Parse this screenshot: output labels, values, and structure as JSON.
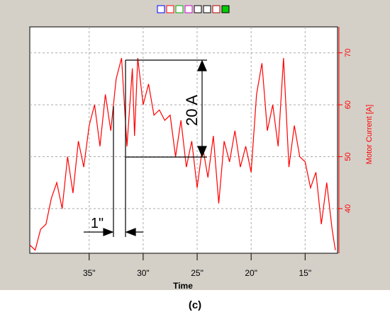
{
  "chart_data": {
    "type": "line",
    "xlabel": "Time",
    "ylabel": "Motor Current [A]",
    "caption": "(c)",
    "annotations": [
      "20 A",
      "1\""
    ],
    "xlim": [
      40.5,
      12
    ],
    "xticks": [
      {
        "value": 35,
        "label": "35\""
      },
      {
        "value": 30,
        "label": "30\""
      },
      {
        "value": 25,
        "label": "25\""
      },
      {
        "value": 20,
        "label": "20\""
      },
      {
        "value": 15,
        "label": "15\""
      }
    ],
    "ylim": [
      31.4,
      75
    ],
    "yticks": [
      40,
      50,
      60,
      70
    ],
    "grid": true,
    "series": [
      {
        "name": "Motor Current",
        "color": "#ff0000",
        "x": [
          40.5,
          40,
          39.5,
          39,
          38.5,
          38,
          37.5,
          37,
          36.5,
          36,
          35.5,
          35,
          34.5,
          34,
          33.5,
          33,
          32.5,
          32,
          31.5,
          31,
          30.8,
          30.5,
          30,
          29.5,
          29,
          28.5,
          28,
          27.5,
          27,
          26.5,
          26,
          25.5,
          25,
          24.5,
          24,
          23.5,
          23,
          22.5,
          22,
          21.5,
          21,
          20.5,
          20,
          19.5,
          19,
          18.5,
          18,
          17.5,
          17,
          16.5,
          16,
          15.5,
          15,
          14.5,
          14,
          13.5,
          13,
          12.5,
          12.2
        ],
        "values": [
          33,
          32,
          36,
          37,
          42,
          45,
          40,
          50,
          43,
          53,
          48,
          56,
          60,
          52,
          62,
          55,
          65,
          69,
          52,
          67,
          54,
          69,
          60,
          64,
          58,
          59,
          57,
          58,
          50,
          57,
          48,
          53,
          44,
          52,
          46,
          54,
          41,
          53,
          49,
          55,
          48,
          52,
          47,
          62,
          68,
          55,
          60,
          52,
          69,
          48,
          56,
          50,
          49,
          44,
          47,
          37,
          45,
          36,
          32
        ]
      }
    ]
  }
}
